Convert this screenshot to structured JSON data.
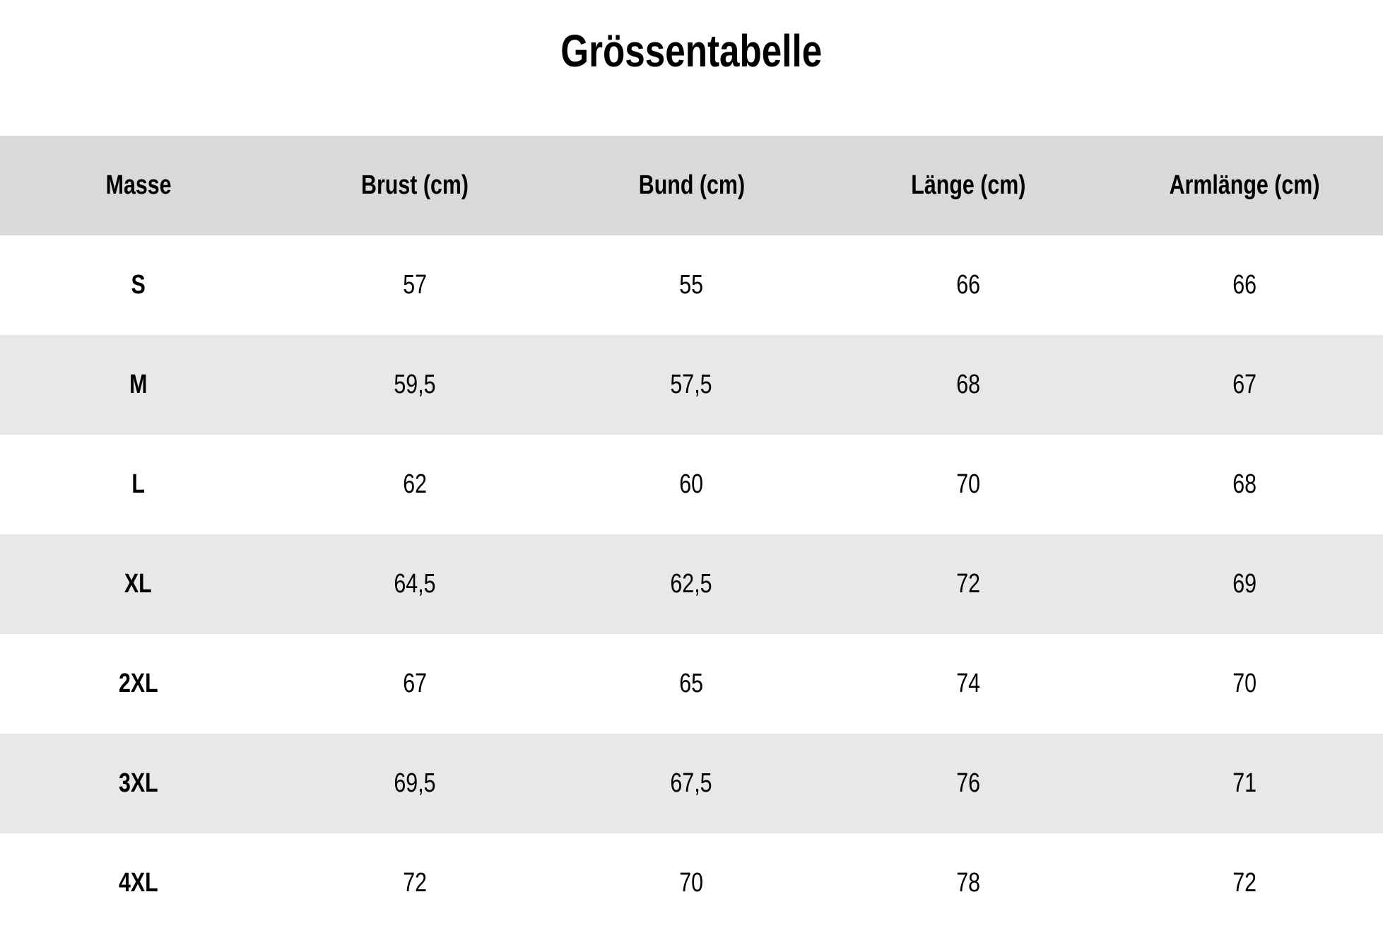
{
  "title": "Grössentabelle",
  "table": {
    "columns": [
      "Masse",
      "Brust (cm)",
      "Bund (cm)",
      "Länge (cm)",
      "Armlänge (cm)"
    ],
    "rows": [
      {
        "size": "S",
        "values": [
          "57",
          "55",
          "66",
          "66"
        ]
      },
      {
        "size": "M",
        "values": [
          "59,5",
          "57,5",
          "68",
          "67"
        ]
      },
      {
        "size": "L",
        "values": [
          "62",
          "60",
          "70",
          "68"
        ]
      },
      {
        "size": "XL",
        "values": [
          "64,5",
          "62,5",
          "72",
          "69"
        ]
      },
      {
        "size": "2XL",
        "values": [
          "67",
          "65",
          "74",
          "70"
        ]
      },
      {
        "size": "3XL",
        "values": [
          "69,5",
          "67,5",
          "76",
          "71"
        ]
      },
      {
        "size": "4XL",
        "values": [
          "72",
          "70",
          "78",
          "72"
        ]
      }
    ]
  },
  "colors": {
    "header_bg": "#d9d9d9",
    "row_alt_bg": "#e8e8e8",
    "row_bg": "#ffffff",
    "text": "#000000"
  }
}
